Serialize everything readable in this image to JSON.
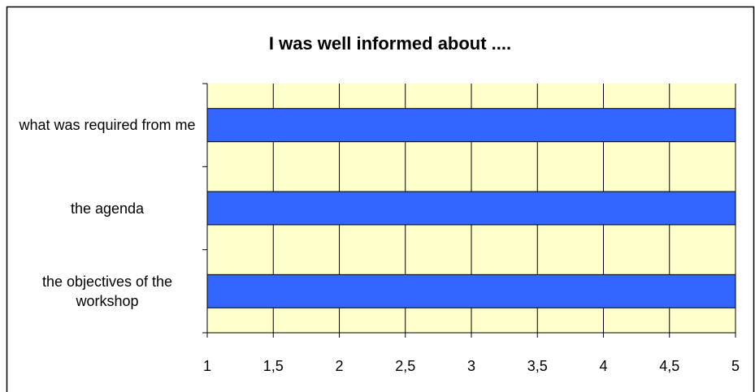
{
  "chart_data": {
    "type": "bar",
    "orientation": "horizontal",
    "title": "I was well informed about ....",
    "categories": [
      "what was required from me",
      "the agenda",
      "the objectives of the workshop"
    ],
    "values": [
      5,
      5,
      5
    ],
    "color": "#3366ff",
    "background": "#ffffcc",
    "xlim": [
      1,
      5
    ],
    "xticks": [
      1,
      {
        "value": 1.5,
        "label": "1,5"
      },
      2,
      {
        "value": 2.5,
        "label": "2,5"
      },
      3,
      {
        "value": 3.5,
        "label": "3,5"
      },
      4,
      {
        "value": 4.5,
        "label": "4,5"
      },
      5
    ],
    "grid": true
  }
}
